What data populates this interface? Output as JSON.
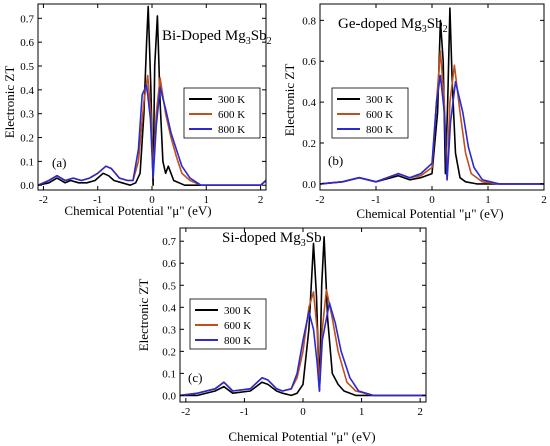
{
  "chart_data": [
    {
      "type": "line",
      "panel_label": "(a)",
      "title_prefix": "Bi-Doped Mg",
      "title_sub1": "3",
      "title_mid": "Sb",
      "title_sub2": "2",
      "xlabel": "Chemical Potential \"μ\" (eV)",
      "ylabel": "Electronic ZT",
      "xlim": [
        -2.1,
        2.1
      ],
      "ylim": [
        -0.02,
        0.76
      ],
      "xticks": [
        "-2",
        "-1",
        "0",
        "1",
        "2"
      ],
      "xtick_values": [
        -2,
        -1,
        0,
        1,
        2
      ],
      "yticks": [
        "0.0",
        "0.1",
        "0.2",
        "0.3",
        "0.4",
        "0.5",
        "0.6",
        "0.7"
      ],
      "ytick_values": [
        0,
        0.1,
        0.2,
        0.3,
        0.4,
        0.5,
        0.6,
        0.7
      ],
      "legend_position": "center-right",
      "series": [
        {
          "name": "300 K",
          "color": "#000000",
          "x": [
            -2.1,
            -1.9,
            -1.75,
            -1.6,
            -1.5,
            -1.35,
            -1.2,
            -1.05,
            -0.9,
            -0.8,
            -0.7,
            -0.55,
            -0.4,
            -0.3,
            -0.22,
            -0.15,
            -0.1,
            -0.07,
            -0.02,
            0.02,
            0.05,
            0.1,
            0.15,
            0.2,
            0.25,
            0.3,
            0.4,
            0.6,
            0.8,
            1.0,
            1.3,
            1.6,
            2.0,
            2.1
          ],
          "y": [
            0.0,
            0.01,
            0.03,
            0.01,
            0.02,
            0.01,
            0.01,
            0.02,
            0.05,
            0.04,
            0.02,
            0.01,
            0.0,
            0.01,
            0.05,
            0.3,
            0.6,
            0.75,
            0.4,
            0.0,
            0.5,
            0.71,
            0.35,
            0.1,
            0.05,
            0.08,
            0.02,
            0.0,
            0.0,
            0.0,
            0.0,
            0.0,
            0.0,
            0.02
          ]
        },
        {
          "name": "600 K",
          "color": "#c0501e",
          "x": [
            -2.1,
            -1.9,
            -1.75,
            -1.6,
            -1.45,
            -1.3,
            -1.15,
            -1.0,
            -0.85,
            -0.75,
            -0.6,
            -0.45,
            -0.35,
            -0.25,
            -0.15,
            -0.08,
            -0.02,
            0.02,
            0.08,
            0.15,
            0.25,
            0.35,
            0.45,
            0.55,
            0.7,
            0.9,
            1.2,
            1.6,
            2.0,
            2.1
          ],
          "y": [
            0.0,
            0.02,
            0.04,
            0.02,
            0.03,
            0.02,
            0.03,
            0.05,
            0.08,
            0.07,
            0.03,
            0.02,
            0.02,
            0.1,
            0.35,
            0.46,
            0.3,
            0.05,
            0.3,
            0.45,
            0.3,
            0.2,
            0.12,
            0.05,
            0.02,
            0.0,
            0.0,
            0.0,
            0.0,
            0.02
          ]
        },
        {
          "name": "800 K",
          "color": "#2a2ad0",
          "x": [
            -2.1,
            -1.9,
            -1.75,
            -1.6,
            -1.45,
            -1.3,
            -1.15,
            -1.0,
            -0.85,
            -0.75,
            -0.6,
            -0.45,
            -0.35,
            -0.25,
            -0.18,
            -0.1,
            -0.03,
            0.02,
            0.08,
            0.15,
            0.25,
            0.35,
            0.45,
            0.55,
            0.7,
            0.9,
            1.2,
            1.6,
            2.0,
            2.1
          ],
          "y": [
            0.0,
            0.02,
            0.04,
            0.02,
            0.03,
            0.02,
            0.03,
            0.05,
            0.08,
            0.07,
            0.03,
            0.02,
            0.02,
            0.15,
            0.38,
            0.42,
            0.28,
            0.03,
            0.25,
            0.41,
            0.32,
            0.22,
            0.15,
            0.08,
            0.03,
            0.0,
            0.0,
            0.0,
            0.0,
            0.02
          ]
        }
      ]
    },
    {
      "type": "line",
      "panel_label": "(b)",
      "title_prefix": "Ge-doped Mg",
      "title_sub1": "3",
      "title_mid": "Sb",
      "title_sub2": "2",
      "xlabel": "Chemical Potential \"μ\" (eV)",
      "ylabel": "Electronic ZT",
      "xlim": [
        -2.0,
        2.0
      ],
      "ylim": [
        -0.03,
        0.88
      ],
      "xticks": [
        "-2",
        "-1",
        "0",
        "1",
        "2"
      ],
      "xtick_values": [
        -2,
        -1,
        0,
        1,
        2
      ],
      "yticks": [
        "0.0",
        "0.2",
        "0.4",
        "0.6",
        "0.8"
      ],
      "ytick_values": [
        0,
        0.2,
        0.4,
        0.6,
        0.8
      ],
      "legend_position": "center-left",
      "series": [
        {
          "name": "300 K",
          "color": "#000000",
          "x": [
            -2.0,
            -1.6,
            -1.3,
            -1.0,
            -0.6,
            -0.4,
            -0.2,
            0.0,
            0.1,
            0.15,
            0.2,
            0.24,
            0.28,
            0.32,
            0.36,
            0.42,
            0.5,
            0.6,
            0.8,
            1.2,
            1.6,
            2.0
          ],
          "y": [
            0.0,
            0.01,
            0.03,
            0.01,
            0.04,
            0.02,
            0.03,
            0.05,
            0.35,
            0.8,
            0.6,
            0.05,
            0.4,
            0.86,
            0.5,
            0.15,
            0.03,
            0.01,
            0.0,
            0.0,
            0.0,
            0.0
          ]
        },
        {
          "name": "600 K",
          "color": "#c0501e",
          "x": [
            -2.0,
            -1.6,
            -1.3,
            -1.0,
            -0.6,
            -0.4,
            -0.2,
            0.0,
            0.08,
            0.15,
            0.22,
            0.27,
            0.32,
            0.4,
            0.5,
            0.6,
            0.7,
            0.9,
            1.2,
            1.6,
            2.0
          ],
          "y": [
            0.0,
            0.01,
            0.03,
            0.01,
            0.05,
            0.03,
            0.04,
            0.08,
            0.4,
            0.65,
            0.4,
            0.02,
            0.4,
            0.58,
            0.35,
            0.15,
            0.05,
            0.01,
            0.0,
            0.0,
            0.0
          ]
        },
        {
          "name": "800 K",
          "color": "#2a2ad0",
          "x": [
            -2.0,
            -1.6,
            -1.3,
            -1.0,
            -0.6,
            -0.4,
            -0.2,
            0.0,
            0.08,
            0.15,
            0.22,
            0.27,
            0.33,
            0.42,
            0.55,
            0.65,
            0.75,
            0.9,
            1.2,
            1.6,
            2.0
          ],
          "y": [
            0.0,
            0.01,
            0.03,
            0.01,
            0.05,
            0.03,
            0.05,
            0.1,
            0.4,
            0.53,
            0.35,
            0.02,
            0.3,
            0.5,
            0.35,
            0.18,
            0.08,
            0.02,
            0.0,
            0.0,
            0.0
          ]
        }
      ]
    },
    {
      "type": "line",
      "panel_label": "(c)",
      "title_prefix": "Si-doped Mg",
      "title_sub1": "3",
      "title_mid": "Sb",
      "title_sub2": "",
      "xlabel": "Chemical Potential \"μ\" (eV)",
      "ylabel": "Electronic ZT",
      "xlim": [
        -2.1,
        2.1
      ],
      "ylim": [
        -0.03,
        0.76
      ],
      "xticks": [
        "-2",
        "-1",
        "0",
        "1",
        "2"
      ],
      "xtick_values": [
        -2,
        -1,
        0,
        1,
        2
      ],
      "yticks": [
        "0.0",
        "0.1",
        "0.2",
        "0.3",
        "0.4",
        "0.5",
        "0.6",
        "0.7"
      ],
      "ytick_values": [
        0,
        0.1,
        0.2,
        0.3,
        0.4,
        0.5,
        0.6,
        0.7
      ],
      "legend_position": "center-left",
      "series": [
        {
          "name": "300 K",
          "color": "#000000",
          "x": [
            -2.1,
            -1.8,
            -1.5,
            -1.35,
            -1.2,
            -0.9,
            -0.7,
            -0.6,
            -0.45,
            -0.35,
            -0.2,
            -0.1,
            0.0,
            0.1,
            0.18,
            0.23,
            0.28,
            0.32,
            0.36,
            0.42,
            0.5,
            0.6,
            0.7,
            0.9,
            1.2,
            1.6,
            2.1
          ],
          "y": [
            0.0,
            0.0,
            0.02,
            0.04,
            0.01,
            0.02,
            0.06,
            0.05,
            0.02,
            0.01,
            0.0,
            0.01,
            0.05,
            0.3,
            0.69,
            0.45,
            0.02,
            0.5,
            0.72,
            0.35,
            0.1,
            0.05,
            0.02,
            0.0,
            0.0,
            0.0,
            0.0
          ]
        },
        {
          "name": "600 K",
          "color": "#c0501e",
          "x": [
            -2.1,
            -1.8,
            -1.5,
            -1.35,
            -1.2,
            -0.9,
            -0.7,
            -0.6,
            -0.45,
            -0.35,
            -0.2,
            -0.1,
            0.0,
            0.1,
            0.18,
            0.24,
            0.28,
            0.33,
            0.4,
            0.5,
            0.6,
            0.75,
            0.9,
            1.2,
            1.6,
            2.1
          ],
          "y": [
            0.0,
            0.01,
            0.03,
            0.06,
            0.02,
            0.03,
            0.08,
            0.07,
            0.03,
            0.02,
            0.03,
            0.08,
            0.2,
            0.4,
            0.47,
            0.3,
            0.02,
            0.3,
            0.48,
            0.35,
            0.2,
            0.06,
            0.02,
            0.0,
            0.0,
            0.0
          ]
        },
        {
          "name": "800 K",
          "color": "#2a2ad0",
          "x": [
            -2.1,
            -1.8,
            -1.5,
            -1.35,
            -1.2,
            -0.9,
            -0.7,
            -0.6,
            -0.45,
            -0.35,
            -0.2,
            -0.1,
            0.0,
            0.1,
            0.18,
            0.24,
            0.28,
            0.33,
            0.45,
            0.55,
            0.65,
            0.8,
            0.95,
            1.2,
            1.6,
            2.1
          ],
          "y": [
            0.0,
            0.01,
            0.03,
            0.06,
            0.02,
            0.03,
            0.08,
            0.07,
            0.03,
            0.02,
            0.03,
            0.1,
            0.25,
            0.38,
            0.3,
            0.15,
            0.02,
            0.25,
            0.42,
            0.33,
            0.2,
            0.08,
            0.02,
            0.0,
            0.0,
            0.0
          ]
        }
      ]
    }
  ]
}
